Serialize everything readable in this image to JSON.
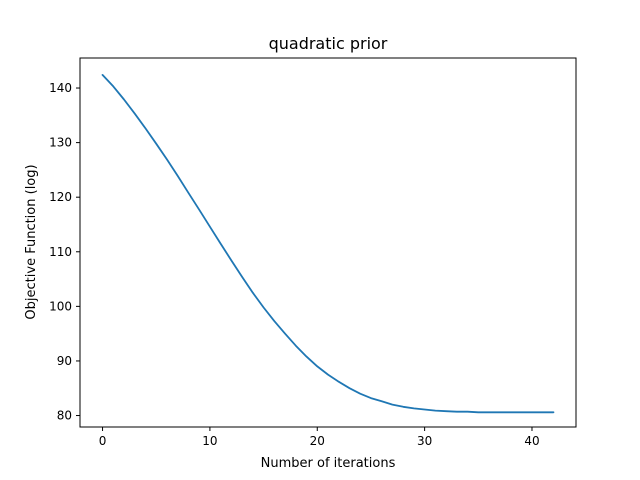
{
  "chart_data": {
    "type": "line",
    "title": "quadratic prior",
    "xlabel": "Number of iterations",
    "ylabel": "Objective Function (log)",
    "xlim": [
      -2.1,
      44.1
    ],
    "ylim": [
      77.9,
      145.5
    ],
    "xticks": [
      0,
      10,
      20,
      30,
      40
    ],
    "yticks": [
      80,
      90,
      100,
      110,
      120,
      130,
      140
    ],
    "grid": false,
    "series": [
      {
        "color": "#1f77b4",
        "x": [
          0,
          1,
          2,
          3,
          4,
          5,
          6,
          7,
          8,
          9,
          10,
          11,
          12,
          13,
          14,
          15,
          16,
          17,
          18,
          19,
          20,
          21,
          22,
          23,
          24,
          25,
          26,
          27,
          28,
          29,
          30,
          31,
          32,
          33,
          34,
          35,
          36,
          37,
          38,
          39,
          40,
          41,
          42
        ],
        "y": [
          142.4,
          140.3,
          137.9,
          135.3,
          132.6,
          129.8,
          126.9,
          123.9,
          120.8,
          117.7,
          114.6,
          111.5,
          108.4,
          105.4,
          102.5,
          99.8,
          97.3,
          95.0,
          92.8,
          90.8,
          89.0,
          87.5,
          86.2,
          85.0,
          84.0,
          83.2,
          82.6,
          82.0,
          81.6,
          81.3,
          81.1,
          80.9,
          80.8,
          80.7,
          80.7,
          80.6,
          80.6,
          80.6,
          80.6,
          80.6,
          80.6,
          80.6,
          80.6
        ]
      }
    ]
  }
}
